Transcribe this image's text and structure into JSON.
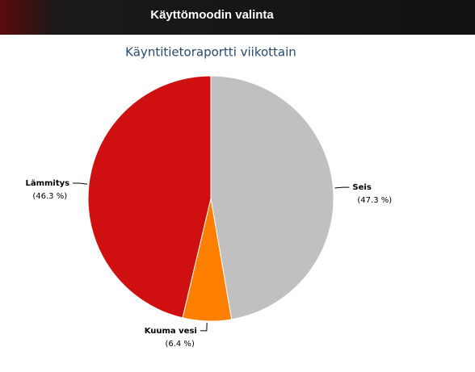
{
  "header": {
    "title": "Käyttömoodin valinta"
  },
  "chart_data": {
    "type": "pie",
    "title": "Käyntitietoraportti viikottain",
    "categories": [
      "Seis",
      "Kuuma vesi",
      "Lämmitys"
    ],
    "values": [
      47.3,
      6.4,
      46.3
    ],
    "value_labels": [
      "(47.3 %)",
      "(6.4 %)",
      "(46.3 %)"
    ],
    "colors": [
      "#c0c0c0",
      "#ff7f00",
      "#d01010"
    ]
  }
}
